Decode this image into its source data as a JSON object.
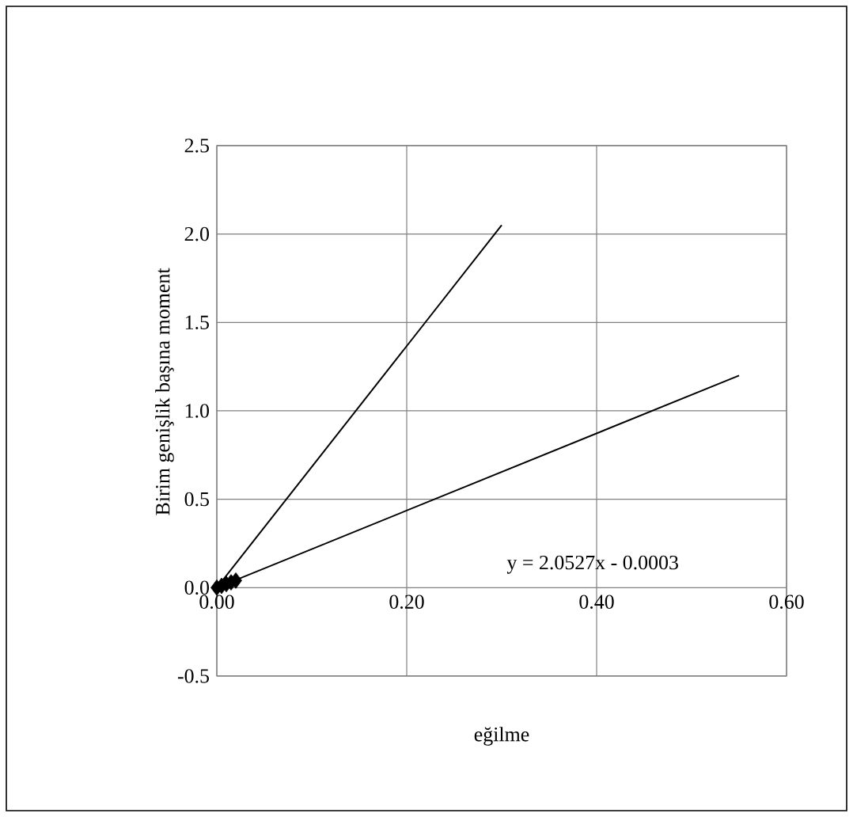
{
  "chart_data": {
    "type": "line",
    "xlabel": "eğilme",
    "ylabel": "Birim genişlik başına moment",
    "annotations": [
      "y = 2.0527x - 0.0003"
    ],
    "series": [
      {
        "type": "scatter",
        "color": "#000000",
        "marker": "diamond",
        "x": [
          0,
          0.005,
          0.01,
          0.015,
          0.02
        ],
        "values": [
          0,
          0.01,
          0.02,
          0.03,
          0.04
        ]
      },
      {
        "color": "#000000",
        "x": [
          0,
          0.3
        ],
        "values": [
          0,
          2.05
        ]
      },
      {
        "color": "#000000",
        "x": [
          0,
          0.55
        ],
        "values": [
          0,
          1.2
        ]
      }
    ],
    "xlim": [
      0,
      0.6
    ],
    "xticks": [
      {
        "value": 0,
        "label": "0.00"
      },
      {
        "value": 0.2,
        "label": "0.20"
      },
      {
        "value": 0.4,
        "label": "0.40"
      },
      {
        "value": 0.6,
        "label": "0.60"
      }
    ],
    "ylim": [
      -0.5,
      2.5
    ],
    "yticks": [
      -0.5,
      {
        "value": 0,
        "label": "0.0"
      },
      0.5,
      {
        "value": 1,
        "label": "1.0"
      },
      1.5,
      {
        "value": 2,
        "label": "2.0"
      },
      2.5
    ],
    "grid": true
  }
}
